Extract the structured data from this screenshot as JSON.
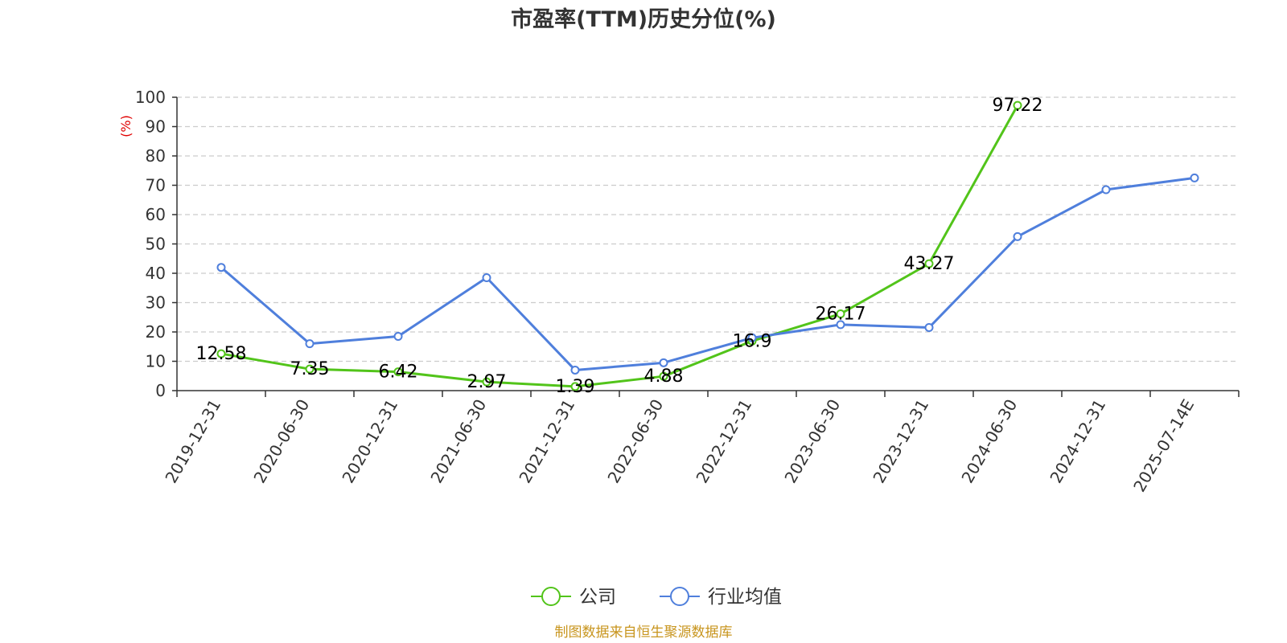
{
  "colors": {
    "company": "#52c41a",
    "industry": "#4f7fdc",
    "ylabel": "#e00000",
    "source": "#c8951e",
    "grid": "#cccccc",
    "axis": "#333333"
  },
  "source_text": "制图数据来自恒生聚源数据库",
  "chart_data": {
    "type": "line",
    "title": "市盈率(TTM)历史分位(%)",
    "ylabel": "(%)",
    "xlabel": "",
    "ylim": [
      0,
      100
    ],
    "yticks": [
      0,
      10,
      20,
      30,
      40,
      50,
      60,
      70,
      80,
      90,
      100
    ],
    "grid": true,
    "legend_position": "bottom-center",
    "categories": [
      "2019-12-31",
      "2020-06-30",
      "2020-12-31",
      "2021-06-30",
      "2021-12-31",
      "2022-06-30",
      "2022-12-31",
      "2023-06-30",
      "2023-12-31",
      "2024-06-30",
      "2024-12-31",
      "2025-07-14E"
    ],
    "series": [
      {
        "name": "公司",
        "color_key": "company",
        "values": [
          12.58,
          7.35,
          6.42,
          2.97,
          1.39,
          4.88,
          16.9,
          26.17,
          43.27,
          97.22,
          null,
          null
        ],
        "labels": [
          "12.58",
          "7.35",
          "6.42",
          "2.97",
          "1.39",
          "4.88",
          "16.9",
          "26.17",
          "43.27",
          "97.22",
          null,
          null
        ]
      },
      {
        "name": "行业均值",
        "color_key": "industry",
        "values": [
          42,
          16,
          18.5,
          38.5,
          7,
          9.5,
          18,
          22.5,
          21.5,
          52.5,
          68.5,
          72.5
        ]
      }
    ]
  }
}
